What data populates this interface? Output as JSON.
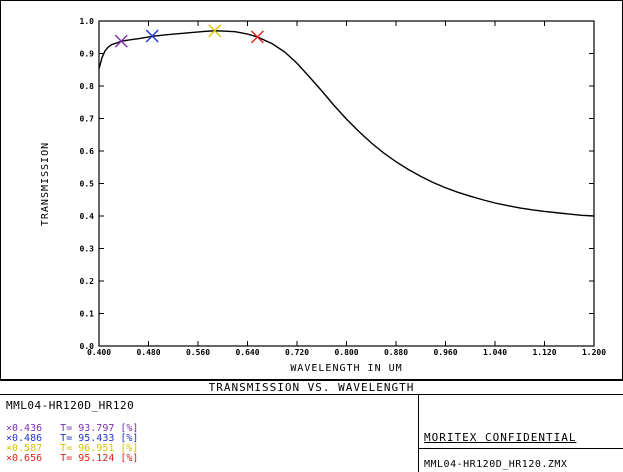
{
  "chart_data": {
    "type": "line",
    "xlabel": "WAVELENGTH IN UM",
    "ylabel": "TRANSMISSION",
    "xlim": [
      0.4,
      1.2
    ],
    "ylim": [
      0.0,
      1.0
    ],
    "x_ticks": [
      "0.400",
      "0.480",
      "0.560",
      "0.640",
      "0.720",
      "0.800",
      "0.880",
      "0.960",
      "1.040",
      "1.120",
      "1.200"
    ],
    "y_ticks": [
      "0.0",
      "0.1",
      "0.2",
      "0.3",
      "0.4",
      "0.5",
      "0.6",
      "0.7",
      "0.8",
      "0.9",
      "1.0"
    ],
    "grid": false,
    "series": [
      {
        "x": [
          0.4,
          0.405,
          0.41,
          0.415,
          0.42,
          0.428,
          0.436,
          0.45,
          0.465,
          0.486,
          0.51,
          0.54,
          0.57,
          0.587,
          0.6,
          0.62,
          0.64,
          0.656,
          0.68,
          0.7,
          0.72,
          0.74,
          0.76,
          0.78,
          0.8,
          0.82,
          0.84,
          0.86,
          0.88,
          0.9,
          0.92,
          0.94,
          0.96,
          0.98,
          1.0,
          1.02,
          1.04,
          1.06,
          1.08,
          1.1,
          1.12,
          1.14,
          1.16,
          1.18,
          1.2
        ],
        "y": [
          0.853,
          0.888,
          0.909,
          0.92,
          0.927,
          0.932,
          0.938,
          0.942,
          0.946,
          0.953,
          0.958,
          0.963,
          0.968,
          0.97,
          0.969,
          0.967,
          0.96,
          0.951,
          0.93,
          0.905,
          0.87,
          0.828,
          0.785,
          0.74,
          0.698,
          0.66,
          0.625,
          0.594,
          0.567,
          0.543,
          0.522,
          0.503,
          0.487,
          0.473,
          0.461,
          0.45,
          0.44,
          0.432,
          0.425,
          0.419,
          0.414,
          0.41,
          0.406,
          0.402,
          0.4
        ]
      }
    ],
    "markers": [
      {
        "x": 0.436,
        "y": 0.938,
        "color": "#7a2fb0"
      },
      {
        "x": 0.486,
        "y": 0.954,
        "color": "#2233cc"
      },
      {
        "x": 0.587,
        "y": 0.97,
        "color": "#d8c400"
      },
      {
        "x": 0.656,
        "y": 0.951,
        "color": "#e02020"
      }
    ],
    "plot_title": "TRANSMISSION VS. WAVELENGTH"
  },
  "lens_name": "MML04-HR120D_HR120",
  "legend": [
    {
      "text": "×0.436   T= 93.797 [%]",
      "color": "#7a2fb0"
    },
    {
      "text": "×0.486   T= 95.433 [%]",
      "color": "#2233cc"
    },
    {
      "text": "×0.587   T= 96.951 [%]",
      "color": "#d8c400"
    },
    {
      "text": "×0.656   T= 95.124 [%]",
      "color": "#e02020"
    }
  ],
  "confidential": "MORITEX CONFIDENTIAL",
  "file_name": "MML04-HR120D_HR120.ZMX"
}
